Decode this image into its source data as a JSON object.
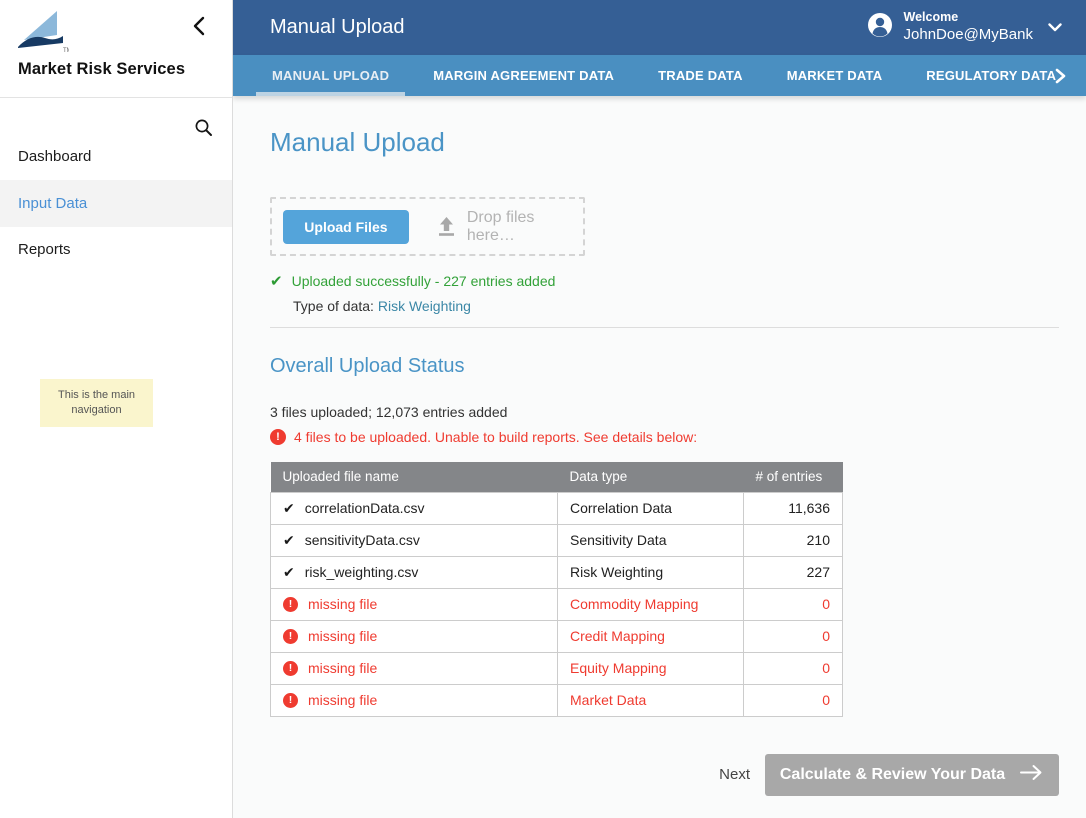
{
  "sidebar": {
    "brand": "Market Risk Services",
    "items": [
      {
        "label": "Dashboard",
        "active": false
      },
      {
        "label": "Input Data",
        "active": true
      },
      {
        "label": "Reports",
        "active": false
      }
    ],
    "tooltip": "This is the main navigation"
  },
  "header": {
    "title": "Manual Upload",
    "welcome_label": "Welcome",
    "username": "JohnDoe@MyBank"
  },
  "tabs": [
    {
      "label": "MANUAL UPLOAD",
      "active": true
    },
    {
      "label": "MARGIN AGREEMENT DATA",
      "active": false
    },
    {
      "label": "TRADE DATA",
      "active": false
    },
    {
      "label": "MARKET DATA",
      "active": false
    },
    {
      "label": "REGULATORY DATA",
      "active": false
    }
  ],
  "upload": {
    "heading": "Manual Upload",
    "upload_button": "Upload Files",
    "drop_label": "Drop files here…",
    "success_message": "Uploaded successfully - 227 entries added",
    "type_label": "Type of data: ",
    "type_value": "Risk Weighting"
  },
  "status": {
    "heading": "Overall Upload Status",
    "summary": "3 files uploaded; 12,073 entries added",
    "warning": "4 files to be uploaded. Unable to build reports. See details below:"
  },
  "table": {
    "columns": [
      "Uploaded file name",
      "Data type",
      "# of entries"
    ],
    "rows": [
      {
        "file": "correlationData.csv",
        "type": "Correlation Data",
        "entries": "11,636",
        "status": "ok"
      },
      {
        "file": "sensitivityData.csv",
        "type": "Sensitivity Data",
        "entries": "210",
        "status": "ok"
      },
      {
        "file": "risk_weighting.csv",
        "type": "Risk Weighting",
        "entries": "227",
        "status": "ok"
      },
      {
        "file": "missing file",
        "type": "Commodity Mapping",
        "entries": "0",
        "status": "missing"
      },
      {
        "file": "missing file",
        "type": "Credit Mapping",
        "entries": "0",
        "status": "missing"
      },
      {
        "file": "missing file",
        "type": "Equity Mapping",
        "entries": "0",
        "status": "missing"
      },
      {
        "file": "missing file",
        "type": "Market Data",
        "entries": "0",
        "status": "missing"
      }
    ]
  },
  "actions": {
    "next_label": "Next",
    "calculate_button": "Calculate & Review Your Data"
  },
  "colors": {
    "header_blue": "#355f95",
    "tab_blue": "#4a8fc1",
    "accent_blue": "#4a94c6",
    "upload_button_blue": "#54a4da",
    "sidebar_active_blue": "#4a90d5",
    "link_teal": "#3b87a6",
    "success_green": "#33a239",
    "error_red": "#ef3b30",
    "table_header_gray": "#848689",
    "disabled_button_gray": "#a8a8a8",
    "tooltip_yellow": "#faf5cd"
  }
}
